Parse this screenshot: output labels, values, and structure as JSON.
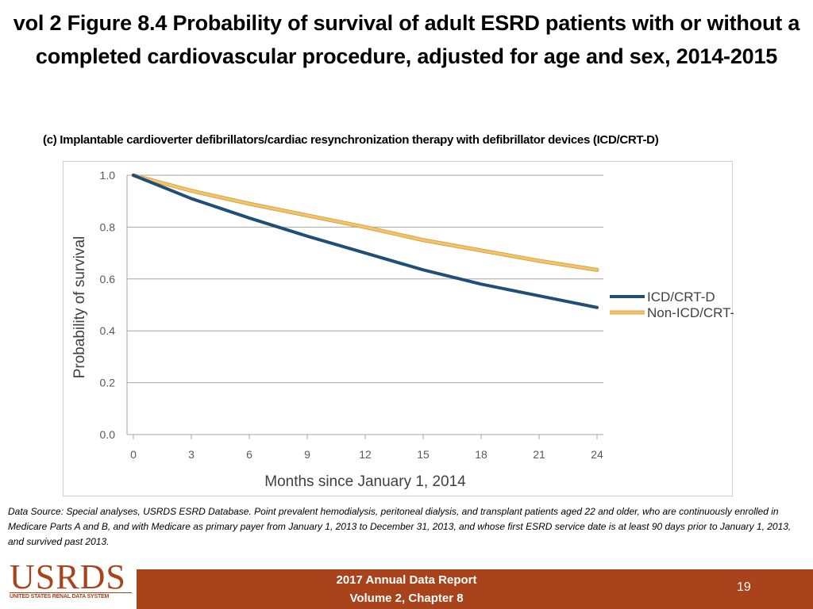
{
  "slide": {
    "title": "vol 2 Figure 8.4 Probability of survival of adult ESRD patients with or without a completed cardiovascular procedure, adjusted for age and sex, 2014-2015",
    "subtitle": "(c) Implantable cardioverter defibrillators/cardiac resynchronization therapy with defibrillator devices (ICD/CRT-D)",
    "source": "Data Source: Special analyses, USRDS ESRD Database. Point prevalent hemodialysis, peritoneal dialysis, and transplant patients aged 22 and older, who are continuously enrolled in Medicare Parts A and B, and with Medicare as primary payer from January 1, 2013 to December 31, 2013, and whose first ESRD service date is at least 90 days prior to January 1, 2013, and survived past 2013."
  },
  "footer": {
    "logo_text": "USRDS",
    "logo_subtext": "UNITED STATES RENAL DATA SYSTEM",
    "report_line1": "2017 Annual Data Report",
    "report_line2": "Volume 2, Chapter 8",
    "page_number": "19",
    "color": "#a8431c"
  },
  "chart_data": {
    "type": "line",
    "title": "",
    "xlabel": "Months since January 1, 2014",
    "ylabel": "Probability of survival",
    "xlim": [
      0,
      24
    ],
    "ylim": [
      0,
      1.0
    ],
    "xticks": [
      0,
      3,
      6,
      9,
      12,
      15,
      18,
      21,
      24
    ],
    "yticks": [
      0.0,
      0.2,
      0.4,
      0.6,
      0.8,
      1.0
    ],
    "ytick_labels": [
      "0.0",
      "0.2",
      "0.4",
      "0.6",
      "0.8",
      "1.0"
    ],
    "grid": "horizontal",
    "legend_position": "right",
    "series": [
      {
        "name": "ICD/CRT-D",
        "color": "#1f4e79",
        "x": [
          0,
          3,
          6,
          9,
          12,
          15,
          18,
          21,
          24
        ],
        "y": [
          1.0,
          0.91,
          0.835,
          0.765,
          0.7,
          0.635,
          0.58,
          0.535,
          0.49
        ]
      },
      {
        "name": "Non-ICD/CRT-D",
        "color": "#f2c46d",
        "x": [
          0,
          3,
          6,
          9,
          12,
          15,
          18,
          21,
          24
        ],
        "y": [
          1.0,
          0.94,
          0.89,
          0.845,
          0.8,
          0.75,
          0.71,
          0.67,
          0.635
        ]
      }
    ]
  }
}
